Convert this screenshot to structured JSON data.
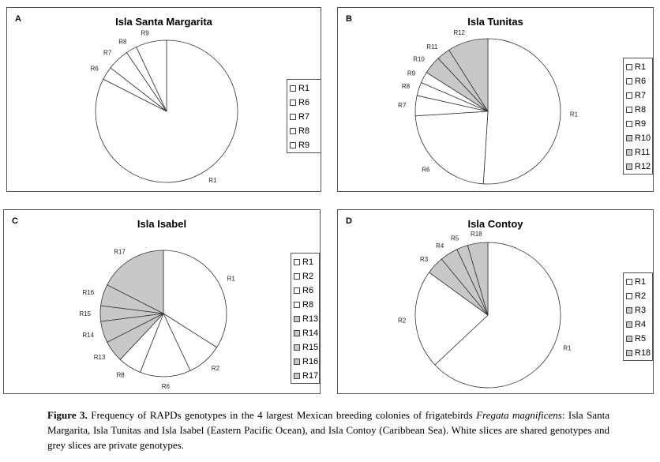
{
  "colors": {
    "shared": "#ffffff",
    "private": "#c8c8c8",
    "stroke": "#333333"
  },
  "chart_data": [
    {
      "type": "pie",
      "panel": "A",
      "title": "Isla Santa Margarita",
      "legend_placement": "right",
      "slices": [
        {
          "label": "R1",
          "value": 82.5,
          "kind": "shared"
        },
        {
          "label": "R6",
          "value": 3.0,
          "kind": "shared"
        },
        {
          "label": "R7",
          "value": 5.0,
          "kind": "shared"
        },
        {
          "label": "R8",
          "value": 2.5,
          "kind": "shared"
        },
        {
          "label": "R9",
          "value": 7.0,
          "kind": "shared"
        }
      ]
    },
    {
      "type": "pie",
      "panel": "B",
      "title": "Isla Tunitas",
      "legend_placement": "right",
      "slices": [
        {
          "label": "R1",
          "value": 51.0,
          "kind": "shared"
        },
        {
          "label": "R6",
          "value": 23.0,
          "kind": "shared"
        },
        {
          "label": "R7",
          "value": 4.5,
          "kind": "shared"
        },
        {
          "label": "R8",
          "value": 3.0,
          "kind": "shared"
        },
        {
          "label": "R9",
          "value": 2.5,
          "kind": "shared"
        },
        {
          "label": "R10",
          "value": 4.0,
          "kind": "private"
        },
        {
          "label": "R11",
          "value": 3.0,
          "kind": "private"
        },
        {
          "label": "R12",
          "value": 9.0,
          "kind": "private"
        }
      ]
    },
    {
      "type": "pie",
      "panel": "C",
      "title": "Isla Isabel",
      "legend_placement": "right",
      "slices": [
        {
          "label": "R1",
          "value": 34.0,
          "kind": "shared"
        },
        {
          "label": "R2",
          "value": 9.0,
          "kind": "shared"
        },
        {
          "label": "R6",
          "value": 13.0,
          "kind": "shared"
        },
        {
          "label": "R8",
          "value": 6.0,
          "kind": "shared"
        },
        {
          "label": "R13",
          "value": 5.5,
          "kind": "private"
        },
        {
          "label": "R14",
          "value": 5.5,
          "kind": "private"
        },
        {
          "label": "R15",
          "value": 4.0,
          "kind": "private"
        },
        {
          "label": "R16",
          "value": 5.5,
          "kind": "private"
        },
        {
          "label": "R17",
          "value": 17.5,
          "kind": "private"
        }
      ]
    },
    {
      "type": "pie",
      "panel": "D",
      "title": "Isla Contoy",
      "legend_placement": "right",
      "slices": [
        {
          "label": "R1",
          "value": 63.0,
          "kind": "shared"
        },
        {
          "label": "R2",
          "value": 22.0,
          "kind": "shared"
        },
        {
          "label": "R3",
          "value": 4.0,
          "kind": "private"
        },
        {
          "label": "R4",
          "value": 4.0,
          "kind": "private"
        },
        {
          "label": "R5",
          "value": 2.5,
          "kind": "private"
        },
        {
          "label": "R18",
          "value": 4.5,
          "kind": "private"
        }
      ]
    }
  ],
  "caption": {
    "figure_label": "Figure 3.",
    "text_1": " Frequency of RAPDs genotypes in the 4 largest Mexican breeding colonies of frigatebirds ",
    "species": "Fregata magnificens",
    "text_2": ": Isla Santa Margarita, Isla Tunitas and Isla Isabel (Eastern Pacific Ocean), and Isla Contoy (Caribbean Sea). White slices are shared genotypes and grey slices are private genotypes."
  }
}
